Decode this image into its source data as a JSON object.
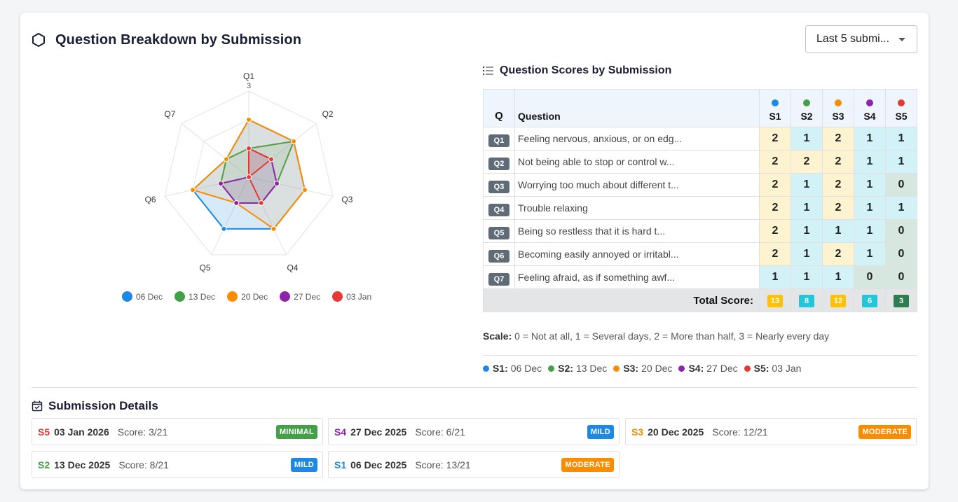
{
  "header": {
    "title": "Question Breakdown by Submission",
    "dropdown_value": "Last 5 submi..."
  },
  "colors": {
    "s1": "#1e88e5",
    "s2": "#43a047",
    "s3": "#fb8c00",
    "s4": "#8e24aa",
    "s5": "#e53935",
    "minimal": "#43a047",
    "mild": "#1e88e5",
    "moderate": "#fb8c00"
  },
  "chart_data": {
    "type": "radar",
    "axes": [
      "Q1",
      "Q2",
      "Q3",
      "Q4",
      "Q5",
      "Q6",
      "Q7"
    ],
    "max": 3,
    "tick_label": "3",
    "series": [
      {
        "name": "06 Dec",
        "values": [
          2,
          2,
          2,
          2,
          2,
          2,
          1
        ]
      },
      {
        "name": "13 Dec",
        "values": [
          1,
          2,
          1,
          1,
          1,
          1,
          1
        ]
      },
      {
        "name": "20 Dec",
        "values": [
          2,
          2,
          2,
          2,
          1,
          2,
          1
        ]
      },
      {
        "name": "27 Dec",
        "values": [
          1,
          1,
          1,
          1,
          1,
          1,
          0
        ]
      },
      {
        "name": "03 Jan",
        "values": [
          1,
          1,
          0,
          1,
          0,
          0,
          0
        ]
      }
    ]
  },
  "scores_table": {
    "title": "Question Scores by Submission",
    "col_q": "Q",
    "col_question": "Question",
    "submission_headers": [
      "S1",
      "S2",
      "S3",
      "S4",
      "S5"
    ],
    "rows": [
      {
        "q": "Q1",
        "text": "Feeling nervous, anxious, or on edg...",
        "scores": [
          2,
          1,
          2,
          1,
          1
        ]
      },
      {
        "q": "Q2",
        "text": "Not being able to stop or control w...",
        "scores": [
          2,
          2,
          2,
          1,
          1
        ]
      },
      {
        "q": "Q3",
        "text": "Worrying too much about different t...",
        "scores": [
          2,
          1,
          2,
          1,
          0
        ]
      },
      {
        "q": "Q4",
        "text": "Trouble relaxing",
        "scores": [
          2,
          1,
          2,
          1,
          1
        ]
      },
      {
        "q": "Q5",
        "text": "Being so restless that it is hard t...",
        "scores": [
          2,
          1,
          1,
          1,
          0
        ]
      },
      {
        "q": "Q6",
        "text": "Becoming easily annoyed or irritabl...",
        "scores": [
          2,
          1,
          2,
          1,
          0
        ]
      },
      {
        "q": "Q7",
        "text": "Feeling afraid, as if something awf...",
        "scores": [
          1,
          1,
          1,
          0,
          0
        ]
      }
    ],
    "total_label": "Total Score:",
    "totals": [
      {
        "value": "13",
        "color": "#ffc107"
      },
      {
        "value": "8",
        "color": "#26c6da"
      },
      {
        "value": "12",
        "color": "#ffc107"
      },
      {
        "value": "6",
        "color": "#26c6da"
      },
      {
        "value": "3",
        "color": "#2e7d4f"
      }
    ]
  },
  "scale": {
    "label": "Scale:",
    "text": "0 = Not at all, 1 = Several days, 2 = More than half, 3 = Nearly every day"
  },
  "submission_legend": [
    {
      "id": "S1:",
      "date": "06 Dec"
    },
    {
      "id": "S2:",
      "date": "13 Dec"
    },
    {
      "id": "S3:",
      "date": "20 Dec"
    },
    {
      "id": "S4:",
      "date": "27 Dec"
    },
    {
      "id": "S5:",
      "date": "03 Jan"
    }
  ],
  "details": {
    "title": "Submission Details",
    "items": [
      {
        "id": "S5",
        "date": "03 Jan 2026",
        "score": "Score: 3/21",
        "severity": "MINIMAL"
      },
      {
        "id": "S4",
        "date": "27 Dec 2025",
        "score": "Score: 6/21",
        "severity": "MILD"
      },
      {
        "id": "S3",
        "date": "20 Dec 2025",
        "score": "Score: 12/21",
        "severity": "MODERATE"
      },
      {
        "id": "S2",
        "date": "13 Dec 2025",
        "score": "Score: 8/21",
        "severity": "MILD"
      },
      {
        "id": "S1",
        "date": "06 Dec 2025",
        "score": "Score: 13/21",
        "severity": "MODERATE"
      }
    ]
  }
}
